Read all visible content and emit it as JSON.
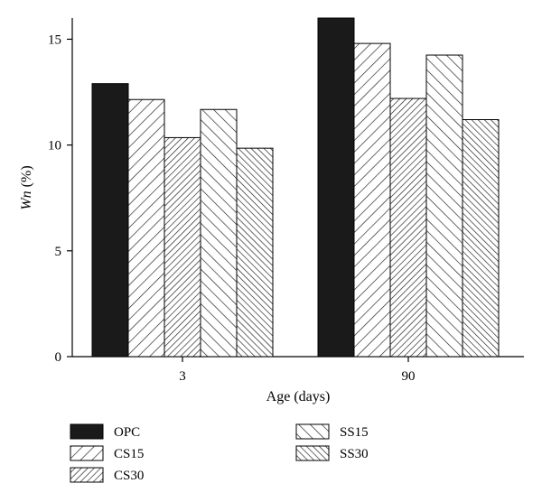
{
  "chart_data": {
    "type": "bar",
    "categories": [
      "3",
      "90"
    ],
    "series": [
      {
        "name": "OPC",
        "values": [
          12.9,
          16.0
        ],
        "pattern": "solid"
      },
      {
        "name": "CS15",
        "values": [
          12.15,
          14.8
        ],
        "pattern": "hatch-forward"
      },
      {
        "name": "CS30",
        "values": [
          10.35,
          12.2
        ],
        "pattern": "hatch-forward-dense"
      },
      {
        "name": "SS15",
        "values": [
          11.68,
          14.25
        ],
        "pattern": "hatch-back"
      },
      {
        "name": "SS30",
        "values": [
          9.85,
          11.2
        ],
        "pattern": "hatch-back-dense"
      }
    ],
    "xlabel": "Age (days)",
    "ylabel_italic": "Wn",
    "ylabel_rest": " (%)",
    "ylim": [
      0,
      16
    ],
    "yticks": [
      0,
      5,
      10,
      15
    ],
    "grid": false,
    "legend_position": "bottom",
    "colors": {
      "bar_fill": "#1a1a1a",
      "hatch": "#1a1a1a",
      "background": "#ffffff"
    }
  }
}
